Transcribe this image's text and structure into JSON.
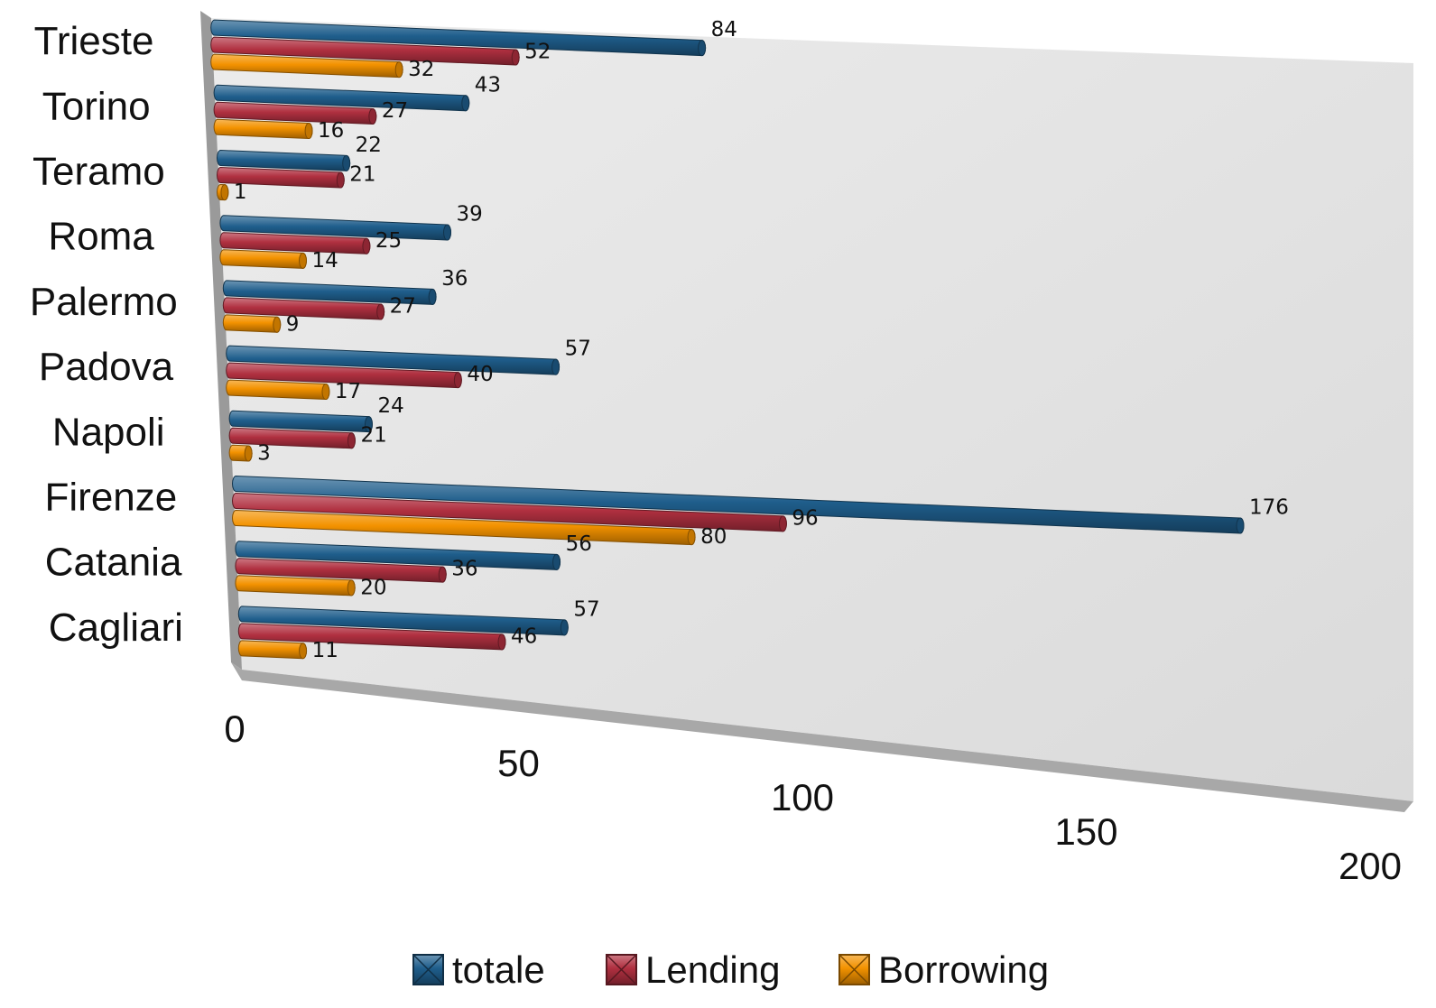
{
  "chart_data": {
    "type": "bar",
    "orientation": "horizontal",
    "style": "3d-cylinder",
    "categories": [
      "Trieste",
      "Torino",
      "Teramo",
      "Roma",
      "Palermo",
      "Padova",
      "Napoli",
      "Firenze",
      "Catania",
      "Cagliari"
    ],
    "series": [
      {
        "name": "totale",
        "color": "#1f5e8c",
        "values": [
          84,
          43,
          22,
          39,
          36,
          57,
          24,
          176,
          56,
          57
        ]
      },
      {
        "name": "Lending",
        "color": "#b03040",
        "values": [
          52,
          27,
          21,
          25,
          27,
          40,
          21,
          96,
          36,
          46
        ]
      },
      {
        "name": "Borrowing",
        "color": "#f39200",
        "values": [
          32,
          16,
          1,
          14,
          9,
          17,
          3,
          80,
          20,
          11
        ]
      }
    ],
    "x_ticks": [
      "0",
      "50",
      "100",
      "150",
      "200"
    ],
    "xlim": [
      0,
      200
    ],
    "legend_position": "bottom",
    "gridlines": false
  }
}
